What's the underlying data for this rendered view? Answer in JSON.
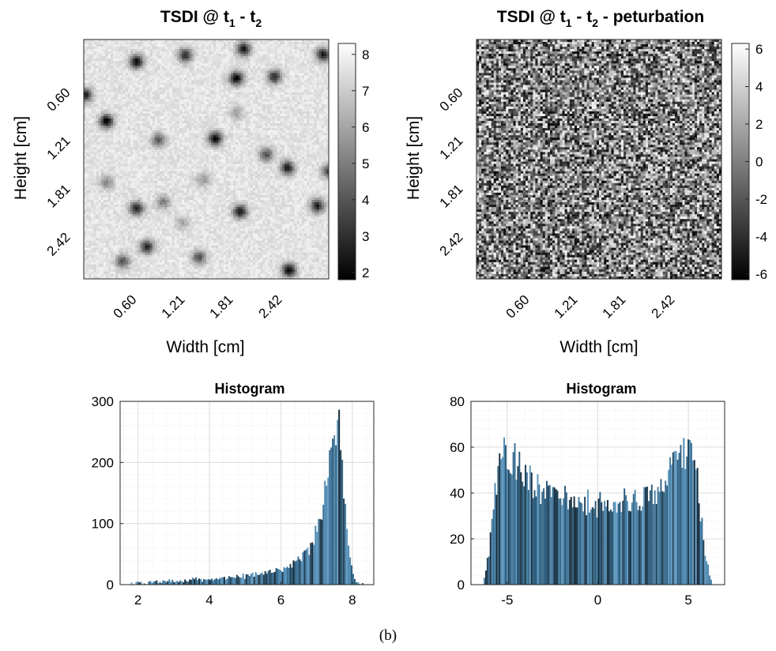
{
  "caption": "(b)",
  "chart_data": [
    {
      "type": "heatmap",
      "title": "TSDI @ t",
      "title_parts": {
        "base": "TSDI @ t",
        "sub1": "1",
        "mid": " - t",
        "sub2": "2",
        "suffix": ""
      },
      "xlabel": "Width [cm]",
      "ylabel": "Height [cm]",
      "x_ticks": [
        "0.60",
        "1.21",
        "1.81",
        "2.42"
      ],
      "y_ticks": [
        "0.60",
        "1.21",
        "1.81",
        "2.42"
      ],
      "x_range": [
        0,
        3.02
      ],
      "y_range": [
        0,
        3.02
      ],
      "colormap": "gray",
      "clim": [
        1.8,
        8.3
      ],
      "colorbar_ticks": [
        "8",
        "7",
        "6",
        "5",
        "4",
        "3",
        "2"
      ],
      "colorbar_tick_values": [
        8,
        7,
        6,
        5,
        4,
        3,
        2
      ],
      "background_level": 7.6,
      "dark_spots": [
        {
          "x": 0.65,
          "y": 0.28,
          "depth": 5.6
        },
        {
          "x": 1.25,
          "y": 0.2,
          "depth": 4.8
        },
        {
          "x": 1.97,
          "y": 0.12,
          "depth": 5.4
        },
        {
          "x": 2.95,
          "y": 0.19,
          "depth": 5.2
        },
        {
          "x": 1.88,
          "y": 0.49,
          "depth": 5.8
        },
        {
          "x": 2.35,
          "y": 0.47,
          "depth": 4.8
        },
        {
          "x": 0.02,
          "y": 0.7,
          "depth": 5.0
        },
        {
          "x": 0.28,
          "y": 1.03,
          "depth": 5.8
        },
        {
          "x": 0.92,
          "y": 1.27,
          "depth": 3.6
        },
        {
          "x": 1.62,
          "y": 1.25,
          "depth": 5.8
        },
        {
          "x": 2.25,
          "y": 1.45,
          "depth": 3.8
        },
        {
          "x": 2.51,
          "y": 1.62,
          "depth": 5.0
        },
        {
          "x": 3.02,
          "y": 1.66,
          "depth": 4.2
        },
        {
          "x": 0.28,
          "y": 1.8,
          "depth": 2.4
        },
        {
          "x": 1.47,
          "y": 1.77,
          "depth": 1.8
        },
        {
          "x": 0.65,
          "y": 2.13,
          "depth": 5.0
        },
        {
          "x": 0.98,
          "y": 2.05,
          "depth": 2.6
        },
        {
          "x": 1.93,
          "y": 2.17,
          "depth": 5.4
        },
        {
          "x": 2.88,
          "y": 2.1,
          "depth": 5.0
        },
        {
          "x": 1.22,
          "y": 2.31,
          "depth": 1.6
        },
        {
          "x": 0.78,
          "y": 2.62,
          "depth": 4.8
        },
        {
          "x": 0.48,
          "y": 2.8,
          "depth": 3.8
        },
        {
          "x": 1.42,
          "y": 2.75,
          "depth": 3.8
        },
        {
          "x": 2.53,
          "y": 2.91,
          "depth": 5.8
        },
        {
          "x": 1.88,
          "y": 0.93,
          "depth": 1.6
        }
      ]
    },
    {
      "type": "heatmap",
      "title": "TSDI @ t - t - peturbation",
      "title_parts": {
        "base": "TSDI @ t",
        "sub1": "1",
        "mid": " - t",
        "sub2": "2",
        "suffix": " - peturbation"
      },
      "xlabel": "Width [cm]",
      "ylabel": "Height [cm]",
      "x_ticks": [
        "0.60",
        "1.21",
        "1.81",
        "2.42"
      ],
      "y_ticks": [
        "0.60",
        "1.21",
        "1.81",
        "2.42"
      ],
      "x_range": [
        0,
        3.02
      ],
      "y_range": [
        0,
        3.02
      ],
      "colormap": "gray",
      "clim": [
        -6.3,
        6.3
      ],
      "colorbar_ticks": [
        "6",
        "4",
        "2",
        "0",
        "-2",
        "-4",
        "-6"
      ],
      "colorbar_tick_values": [
        6,
        4,
        2,
        0,
        -2,
        -4,
        -6
      ],
      "distribution": "noise, roughly uniform in [-6, 6]"
    },
    {
      "type": "bar",
      "title": "Histogram",
      "x_ticks": [
        "2",
        "4",
        "6",
        "8"
      ],
      "x_tick_values": [
        2,
        4,
        6,
        8
      ],
      "y_ticks": [
        "0",
        "100",
        "200",
        "300"
      ],
      "y_tick_values": [
        0,
        100,
        200,
        300
      ],
      "xlim": [
        1.5,
        8.6
      ],
      "ylim": [
        0,
        300
      ],
      "grid": true,
      "bin_edges": [
        1.8,
        8.4
      ],
      "bins": 150,
      "profile_points": {
        "x": [
          1.8,
          2.5,
          3.0,
          4.0,
          5.0,
          5.5,
          6.0,
          6.4,
          6.8,
          7.0,
          7.2,
          7.35,
          7.5,
          7.6,
          7.7,
          7.8,
          7.9,
          8.0,
          8.1,
          8.2,
          8.4
        ],
        "y": [
          1,
          4,
          6,
          9,
          14,
          18,
          24,
          35,
          60,
          90,
          135,
          185,
          245,
          270,
          215,
          130,
          60,
          22,
          8,
          3,
          0
        ]
      }
    },
    {
      "type": "bar",
      "title": "Histogram",
      "x_ticks": [
        "-5",
        "0",
        "5"
      ],
      "x_tick_values": [
        -5,
        0,
        5
      ],
      "y_ticks": [
        "0",
        "20",
        "40",
        "60",
        "80"
      ],
      "y_tick_values": [
        0,
        20,
        40,
        60,
        80
      ],
      "xlim": [
        -7.0,
        7.0
      ],
      "ylim": [
        0,
        80
      ],
      "grid": true,
      "bin_edges": [
        -6.3,
        6.3
      ],
      "bins": 150,
      "profile_points": {
        "x": [
          -6.3,
          -6.0,
          -5.7,
          -5.4,
          -5.0,
          -4.5,
          -4.0,
          -3.0,
          -2.0,
          0.0,
          2.0,
          3.0,
          4.0,
          4.5,
          5.0,
          5.4,
          5.7,
          6.0,
          6.3
        ],
        "y": [
          2,
          15,
          40,
          56,
          58,
          52,
          46,
          40,
          37,
          35,
          37,
          40,
          48,
          56,
          60,
          52,
          30,
          10,
          0
        ]
      }
    }
  ]
}
